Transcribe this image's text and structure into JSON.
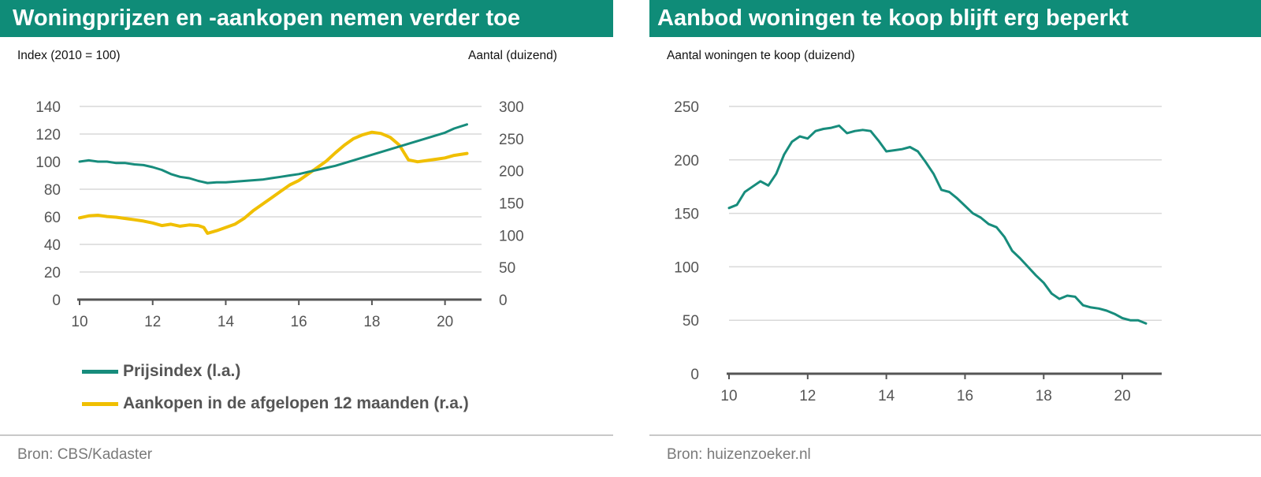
{
  "left": {
    "title": "Woningprijzen en -aankopen nemen verder toe",
    "left_axis_label": "Index (2010 = 100)",
    "right_axis_label": "Aantal (duizend)",
    "source": "Bron: CBS/Kadaster"
  },
  "right": {
    "title": "Aanbod woningen te koop blijft erg beperkt",
    "axis_label": "Aantal woningen te koop (duizend)",
    "source": "Bron: huizenzoeker.nl"
  },
  "colors": {
    "title_bar": "#0f8c78",
    "teal": "#178c7c",
    "yellow": "#f0bf00",
    "grid": "#d9d9d9",
    "axis": "#555555"
  },
  "chart_data": [
    {
      "type": "line",
      "title": "Woningprijzen en -aankopen nemen verder toe",
      "xlim": [
        10,
        21
      ],
      "x_ticks": [
        10,
        12,
        14,
        16,
        18,
        20
      ],
      "y_left": {
        "label": "Index (2010 = 100)",
        "lim": [
          0,
          140
        ],
        "ticks": [
          0,
          20,
          40,
          60,
          80,
          100,
          120,
          140
        ]
      },
      "y_right": {
        "label": "Aantal (duizend)",
        "lim": [
          0,
          300
        ],
        "ticks": [
          0,
          50,
          100,
          150,
          200,
          250,
          300
        ]
      },
      "grid": true,
      "legend_position": "bottom",
      "series": [
        {
          "name": "Prijsindex (l.a.)",
          "axis": "left",
          "color": "#178c7c",
          "x": [
            10.0,
            10.25,
            10.5,
            10.75,
            11.0,
            11.25,
            11.5,
            11.75,
            12.0,
            12.25,
            12.5,
            12.75,
            13.0,
            13.25,
            13.5,
            13.75,
            14.0,
            14.25,
            14.5,
            14.75,
            15.0,
            15.25,
            15.5,
            15.75,
            16.0,
            16.25,
            16.5,
            16.75,
            17.0,
            17.25,
            17.5,
            17.75,
            18.0,
            18.25,
            18.5,
            18.75,
            19.0,
            19.25,
            19.5,
            19.75,
            20.0,
            20.25,
            20.6
          ],
          "values": [
            100,
            101,
            100,
            100,
            99,
            99,
            98,
            97.5,
            96,
            94,
            91,
            89,
            88,
            86,
            84.5,
            85,
            85,
            85.5,
            86,
            86.5,
            87,
            88,
            89,
            90,
            91,
            92.5,
            94,
            95.5,
            97,
            99,
            101,
            103,
            105,
            107,
            109,
            111,
            113,
            115,
            117,
            119,
            121,
            124,
            127
          ]
        },
        {
          "name": "Aankopen in de afgelopen 12 maanden (r.a.)",
          "axis": "right",
          "color": "#f0bf00",
          "x": [
            10.0,
            10.25,
            10.5,
            10.75,
            11.0,
            11.25,
            11.5,
            11.75,
            12.0,
            12.25,
            12.5,
            12.75,
            13.0,
            13.25,
            13.4,
            13.5,
            13.75,
            14.0,
            14.25,
            14.5,
            14.75,
            15.0,
            15.25,
            15.5,
            15.75,
            16.0,
            16.25,
            16.5,
            16.75,
            17.0,
            17.25,
            17.5,
            17.75,
            18.0,
            18.25,
            18.5,
            18.75,
            19.0,
            19.25,
            19.5,
            19.75,
            20.0,
            20.25,
            20.6
          ],
          "values": [
            127,
            130,
            131,
            129,
            128,
            126,
            124,
            122,
            119,
            115,
            117,
            114,
            116,
            115,
            112,
            103,
            107,
            112,
            117,
            126,
            138,
            148,
            158,
            168,
            178,
            185,
            195,
            205,
            215,
            228,
            240,
            250,
            256,
            260,
            258,
            252,
            240,
            217,
            214,
            216,
            218,
            220,
            224,
            227
          ]
        }
      ]
    },
    {
      "type": "line",
      "title": "Aanbod woningen te koop blijft erg beperkt",
      "xlim": [
        10,
        21
      ],
      "x_ticks": [
        10,
        12,
        14,
        16,
        18,
        20
      ],
      "ylabel": "Aantal woningen te koop (duizend)",
      "ylim": [
        0,
        250
      ],
      "y_ticks": [
        0,
        50,
        100,
        150,
        200,
        250
      ],
      "grid": true,
      "series": [
        {
          "color": "#178c7c",
          "x": [
            10.0,
            10.2,
            10.4,
            10.6,
            10.8,
            11.0,
            11.2,
            11.4,
            11.6,
            11.8,
            12.0,
            12.2,
            12.4,
            12.6,
            12.8,
            13.0,
            13.2,
            13.4,
            13.6,
            13.8,
            14.0,
            14.2,
            14.4,
            14.6,
            14.8,
            15.0,
            15.2,
            15.4,
            15.6,
            15.8,
            16.0,
            16.2,
            16.4,
            16.6,
            16.8,
            17.0,
            17.2,
            17.4,
            17.6,
            17.8,
            18.0,
            18.2,
            18.4,
            18.6,
            18.8,
            19.0,
            19.2,
            19.4,
            19.6,
            19.8,
            20.0,
            20.2,
            20.4,
            20.6
          ],
          "values": [
            155,
            158,
            170,
            175,
            180,
            176,
            187,
            205,
            217,
            222,
            220,
            227,
            229,
            230,
            232,
            225,
            227,
            228,
            227,
            218,
            208,
            209,
            210,
            212,
            208,
            198,
            187,
            172,
            170,
            164,
            157,
            150,
            146,
            140,
            137,
            128,
            115,
            108,
            100,
            92,
            85,
            75,
            70,
            73,
            72,
            64,
            62,
            61,
            59,
            56,
            52,
            50,
            50,
            47
          ]
        }
      ]
    }
  ],
  "legend": [
    {
      "label": "Prijsindex (l.a.)",
      "color": "#178c7c"
    },
    {
      "label": "Aankopen in de afgelopen 12 maanden (r.a.)",
      "color": "#f0bf00"
    }
  ]
}
